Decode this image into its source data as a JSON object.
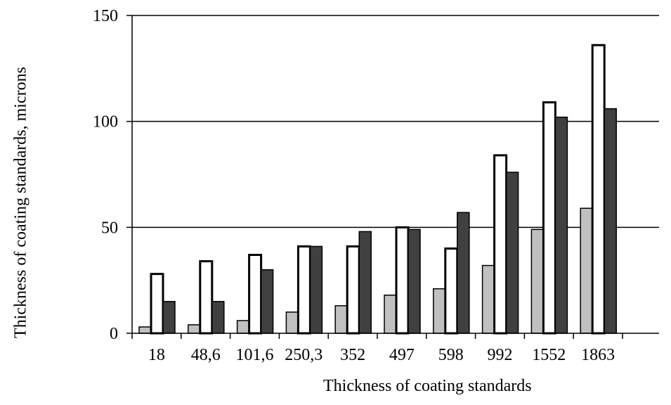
{
  "chart_data": {
    "type": "bar",
    "title": "",
    "xlabel": "Thickness of coating standards",
    "ylabel": "Thickness of coating standards,  microns",
    "categories": [
      "18",
      "48,6",
      "101,6",
      "250,3",
      "352",
      "497",
      "598",
      "992",
      "1552",
      "1863"
    ],
    "ylim": [
      0,
      150
    ],
    "yticks": [
      0,
      50,
      100,
      150
    ],
    "grid": true,
    "legend": "none",
    "series": [
      {
        "values": [
          3,
          4,
          6,
          10,
          13,
          18,
          21,
          32,
          49,
          59
        ],
        "color": "#c0c0c0"
      },
      {
        "values": [
          28,
          34,
          37,
          41,
          41,
          50,
          40,
          84,
          109,
          136
        ],
        "color": "#ffffff"
      },
      {
        "values": [
          15,
          15,
          30,
          41,
          48,
          49,
          57,
          76,
          102,
          106
        ],
        "color": "#404040"
      }
    ]
  }
}
